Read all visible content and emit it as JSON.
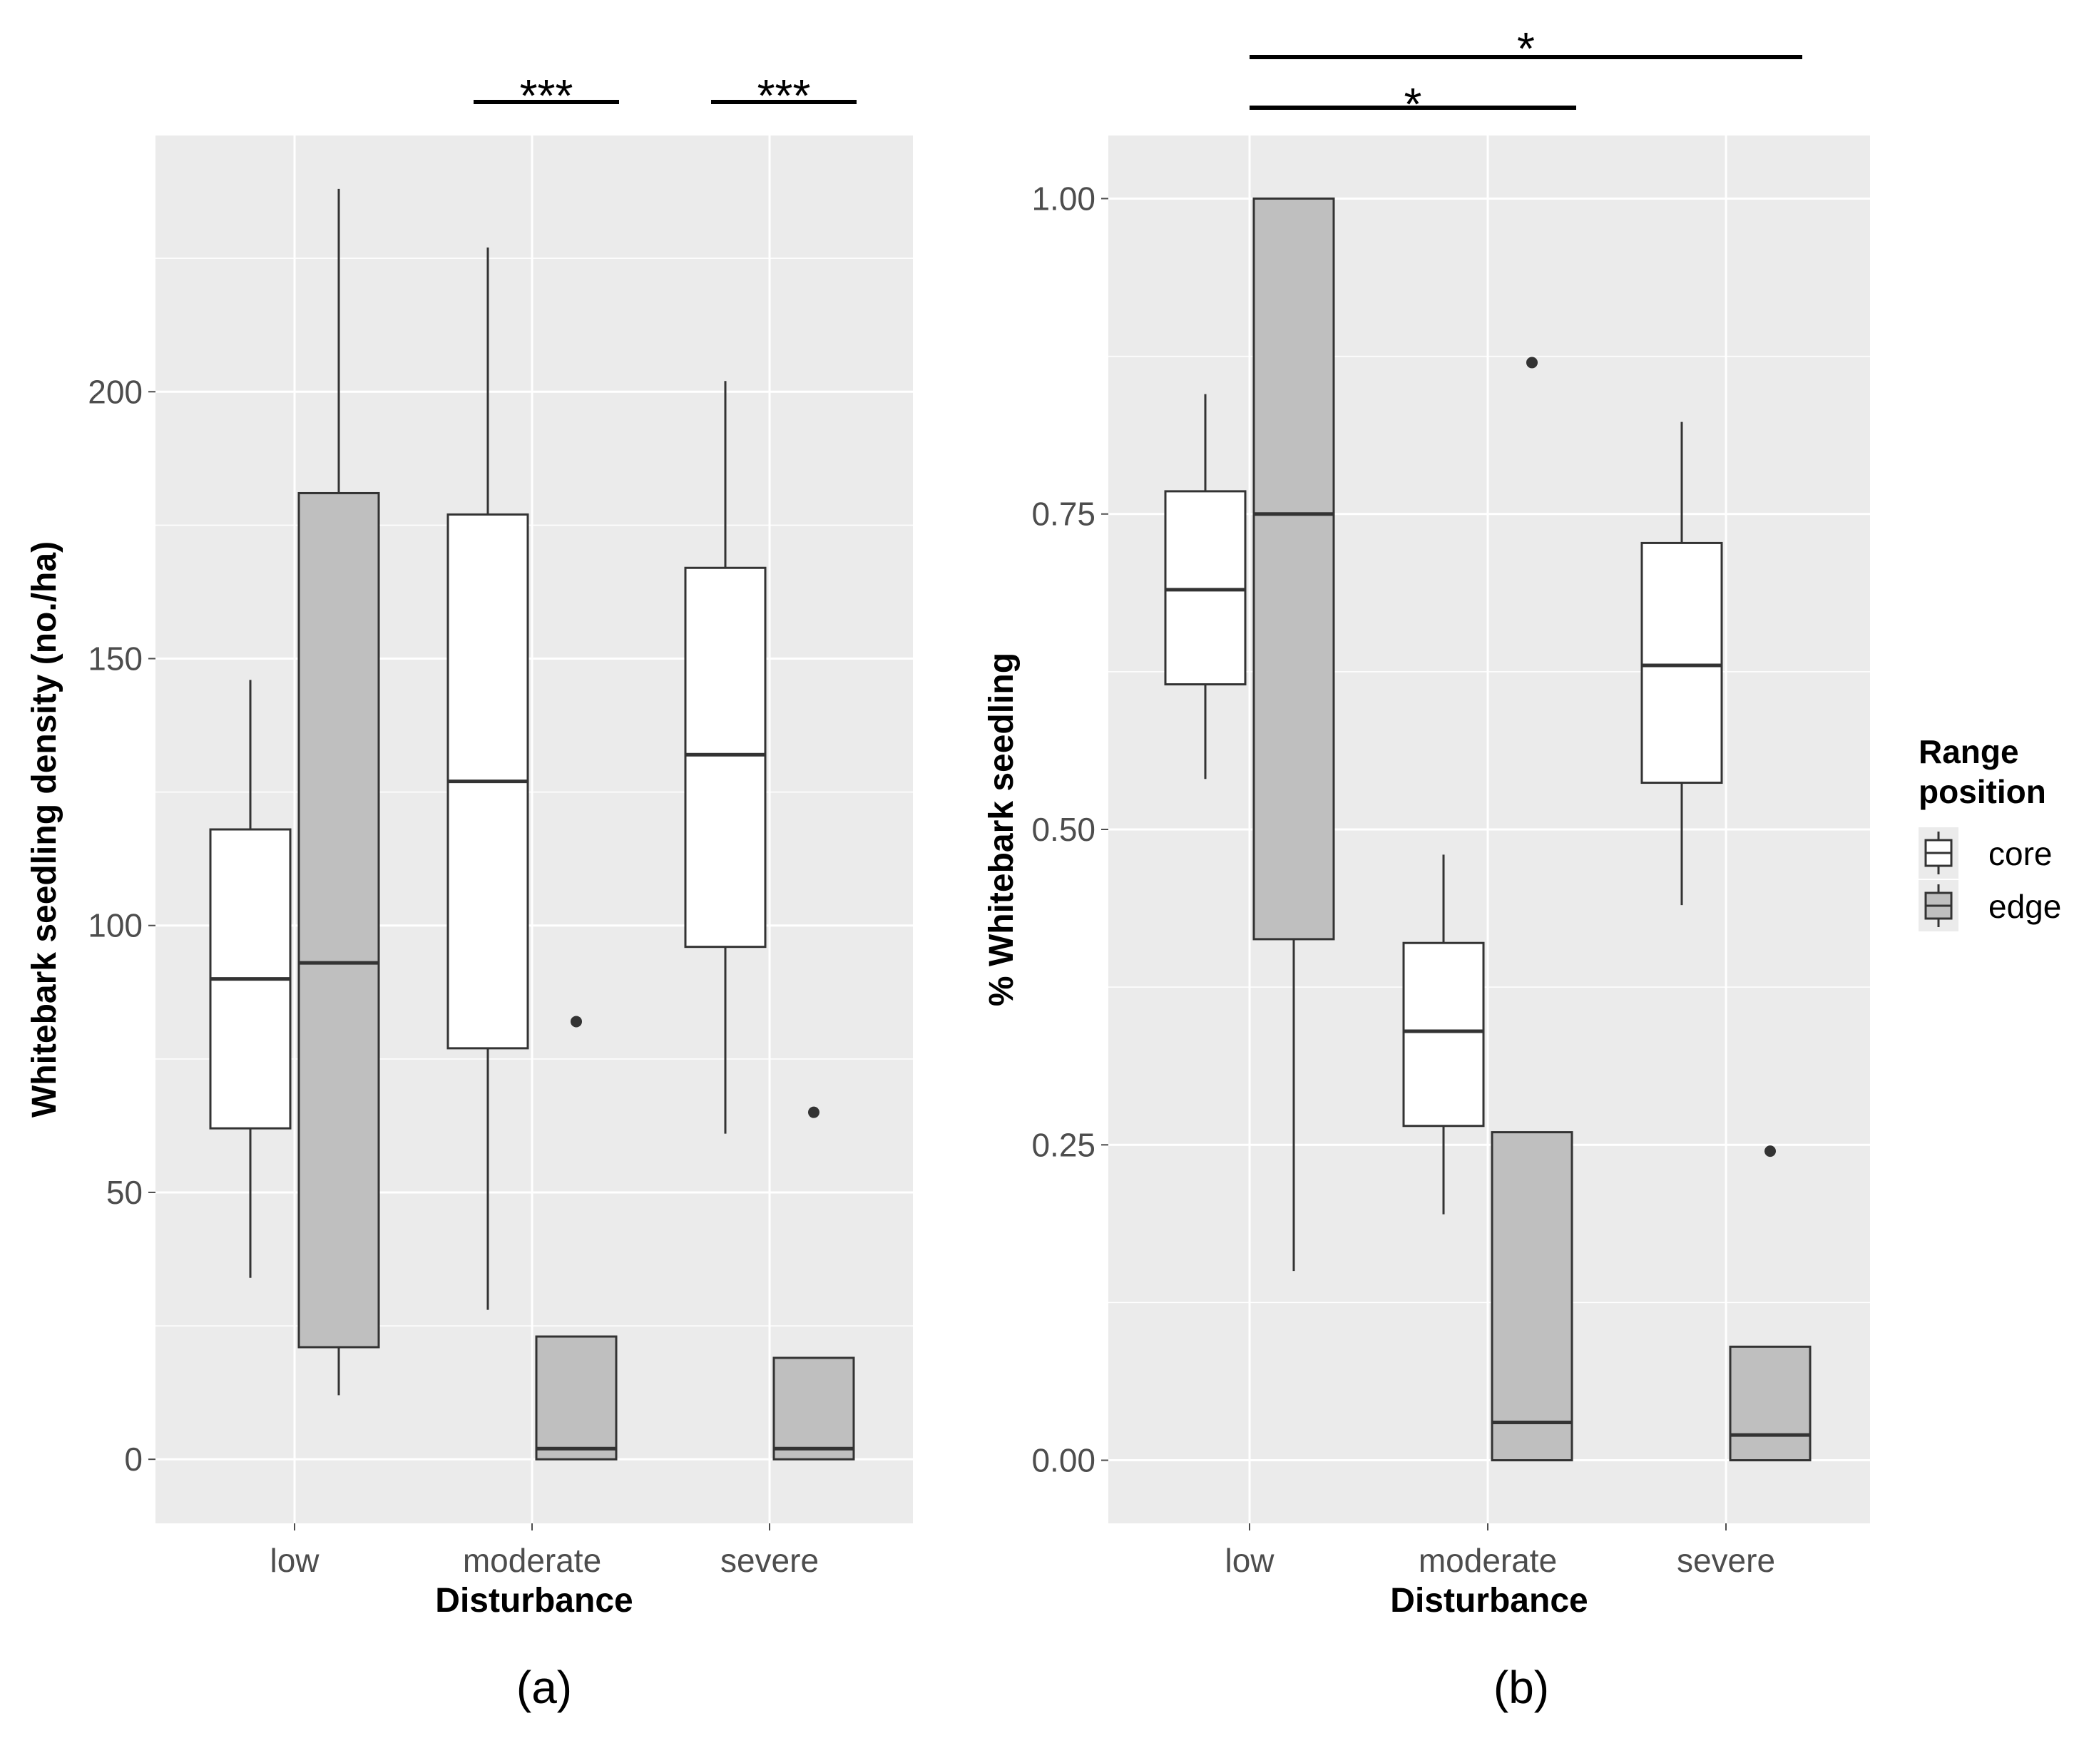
{
  "chart_data": [
    {
      "type": "boxplot",
      "panel_label": "(a)",
      "xlabel": "Disturbance",
      "ylabel": "Whitebark seedling density (no./ha)",
      "categories": [
        "low",
        "moderate",
        "severe"
      ],
      "ylim": [
        -12,
        248
      ],
      "yticks": [
        0,
        50,
        100,
        150,
        200
      ],
      "ytick_labels": [
        "0",
        "50",
        "100",
        "150",
        "200"
      ],
      "series": [
        {
          "name": "core",
          "boxes": [
            {
              "category": "low",
              "whisker_low": 34,
              "q1": 62,
              "median": 90,
              "q3": 118,
              "whisker_high": 146,
              "outliers": []
            },
            {
              "category": "moderate",
              "whisker_low": 28,
              "q1": 77,
              "median": 127,
              "q3": 177,
              "whisker_high": 227,
              "outliers": []
            },
            {
              "category": "severe",
              "whisker_low": 61,
              "q1": 96,
              "median": 132,
              "q3": 167,
              "whisker_high": 202,
              "outliers": []
            }
          ]
        },
        {
          "name": "edge",
          "boxes": [
            {
              "category": "low",
              "whisker_low": 12,
              "q1": 21,
              "median": 93,
              "q3": 181,
              "whisker_high": 238,
              "outliers": []
            },
            {
              "category": "moderate",
              "whisker_low": 0,
              "q1": 0,
              "median": 2,
              "q3": 23,
              "whisker_high": 23,
              "outliers": [
                82
              ]
            },
            {
              "category": "severe",
              "whisker_low": 0,
              "q1": 0,
              "median": 2,
              "q3": 19,
              "whisker_high": 19,
              "outliers": [
                65
              ]
            }
          ]
        }
      ],
      "significance": [
        {
          "label": "***",
          "category": "moderate",
          "from": "core",
          "to": "edge"
        },
        {
          "label": "***",
          "category": "severe",
          "from": "core",
          "to": "edge"
        }
      ]
    },
    {
      "type": "boxplot",
      "panel_label": "(b)",
      "xlabel": "Disturbance",
      "ylabel": "% Whitebark seedling",
      "categories": [
        "low",
        "moderate",
        "severe"
      ],
      "ylim": [
        -0.05,
        1.05
      ],
      "yticks": [
        0,
        0.25,
        0.5,
        0.75,
        1.0
      ],
      "ytick_labels": [
        "0.00",
        "0.25",
        "0.50",
        "0.75",
        "1.00"
      ],
      "series": [
        {
          "name": "core",
          "boxes": [
            {
              "category": "low",
              "whisker_low": 0.54,
              "q1": 0.615,
              "median": 0.69,
              "q3": 0.768,
              "whisker_high": 0.845,
              "outliers": []
            },
            {
              "category": "moderate",
              "whisker_low": 0.195,
              "q1": 0.265,
              "median": 0.34,
              "q3": 0.41,
              "whisker_high": 0.48,
              "outliers": []
            },
            {
              "category": "severe",
              "whisker_low": 0.44,
              "q1": 0.537,
              "median": 0.63,
              "q3": 0.727,
              "whisker_high": 0.823,
              "outliers": []
            }
          ]
        },
        {
          "name": "edge",
          "boxes": [
            {
              "category": "low",
              "whisker_low": 0.15,
              "q1": 0.413,
              "median": 0.75,
              "q3": 1.0,
              "whisker_high": 1.0,
              "outliers": []
            },
            {
              "category": "moderate",
              "whisker_low": 0.0,
              "q1": 0.0,
              "median": 0.03,
              "q3": 0.26,
              "whisker_high": 0.26,
              "outliers": [
                0.87
              ]
            },
            {
              "category": "severe",
              "whisker_low": 0.0,
              "q1": 0.0,
              "median": 0.02,
              "q3": 0.09,
              "whisker_high": 0.09,
              "outliers": [
                0.245
              ]
            }
          ]
        }
      ],
      "significance": [
        {
          "label": "*",
          "from_category": "low",
          "to_category": "moderate",
          "group": "edge"
        },
        {
          "label": "*",
          "from_category": "low",
          "to_category": "severe",
          "group": "edge"
        }
      ]
    }
  ],
  "legend": {
    "title_line1": "Range",
    "title_line2": "position",
    "items": [
      {
        "label": "core",
        "fill": "#ffffff"
      },
      {
        "label": "edge",
        "fill": "#bfbfbf"
      }
    ]
  },
  "colors": {
    "panel_bg": "#ebebeb",
    "grid": "#ffffff",
    "core_fill": "#ffffff",
    "edge_fill": "#bfbfbf",
    "outline": "#333333"
  }
}
